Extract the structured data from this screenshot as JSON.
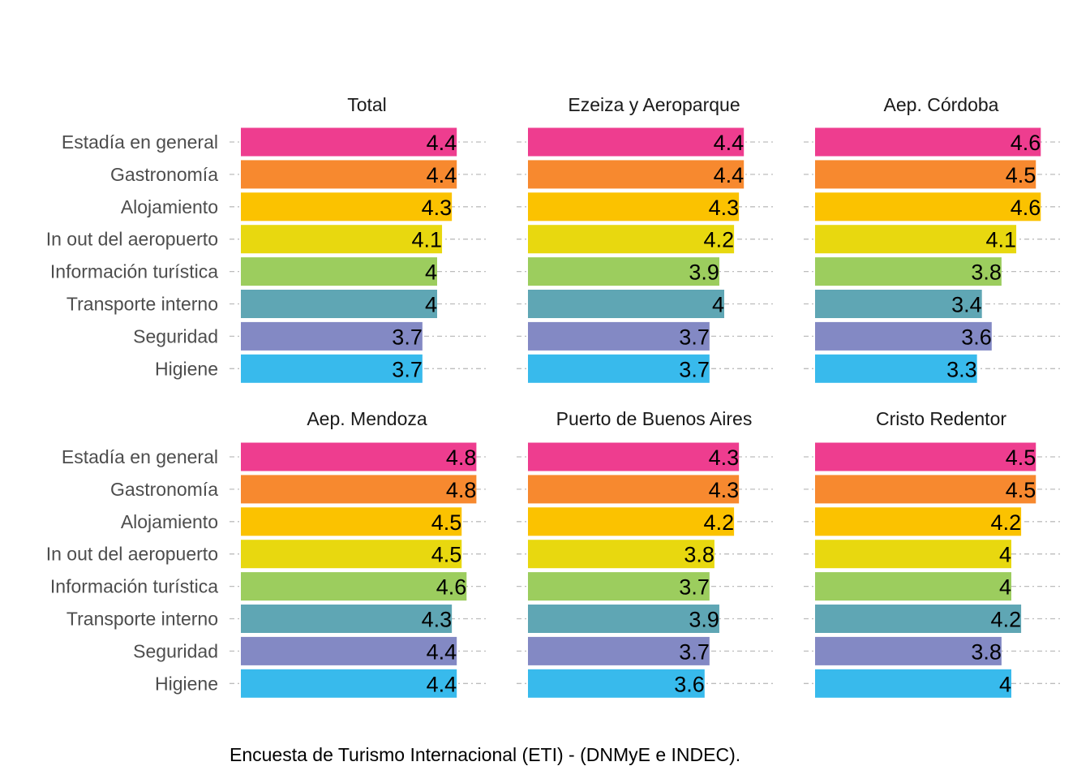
{
  "chart_data": {
    "type": "bar",
    "orientation": "horizontal",
    "layout": "facet-grid 2x3",
    "categories": [
      "Estadía en general",
      "Gastronomía",
      "Alojamiento",
      "In out del aeropuerto",
      "Información turística",
      "Transporte interno",
      "Seguridad",
      "Higiene"
    ],
    "colors": [
      "#EE3D8F",
      "#F7892F",
      "#FBC200",
      "#E8D80F",
      "#9CCD5E",
      "#5FA6B4",
      "#8389C4",
      "#38BAEC"
    ],
    "xlim": [
      0,
      5
    ],
    "grid": "dashed horizontal lines at each category",
    "legend": "none",
    "panels": [
      {
        "title": "Total",
        "values": [
          4.4,
          4.4,
          4.3,
          4.1,
          4,
          4,
          3.7,
          3.7
        ]
      },
      {
        "title": "Ezeiza y Aeroparque",
        "values": [
          4.4,
          4.4,
          4.3,
          4.2,
          3.9,
          4,
          3.7,
          3.7
        ]
      },
      {
        "title": "Aep. Córdoba",
        "values": [
          4.6,
          4.5,
          4.6,
          4.1,
          3.8,
          3.4,
          3.6,
          3.3
        ]
      },
      {
        "title": "Aep. Mendoza",
        "values": [
          4.8,
          4.8,
          4.5,
          4.5,
          4.6,
          4.3,
          4.4,
          4.4
        ]
      },
      {
        "title": "Puerto de Buenos Aires",
        "values": [
          4.3,
          4.3,
          4.2,
          3.8,
          3.7,
          3.9,
          3.7,
          3.6
        ]
      },
      {
        "title": "Cristo Redentor",
        "values": [
          4.5,
          4.5,
          4.2,
          4,
          4,
          4.2,
          3.8,
          4
        ]
      }
    ]
  },
  "caption": "Encuesta de Turismo Internacional (ETI) - (DNMyE e INDEC)."
}
